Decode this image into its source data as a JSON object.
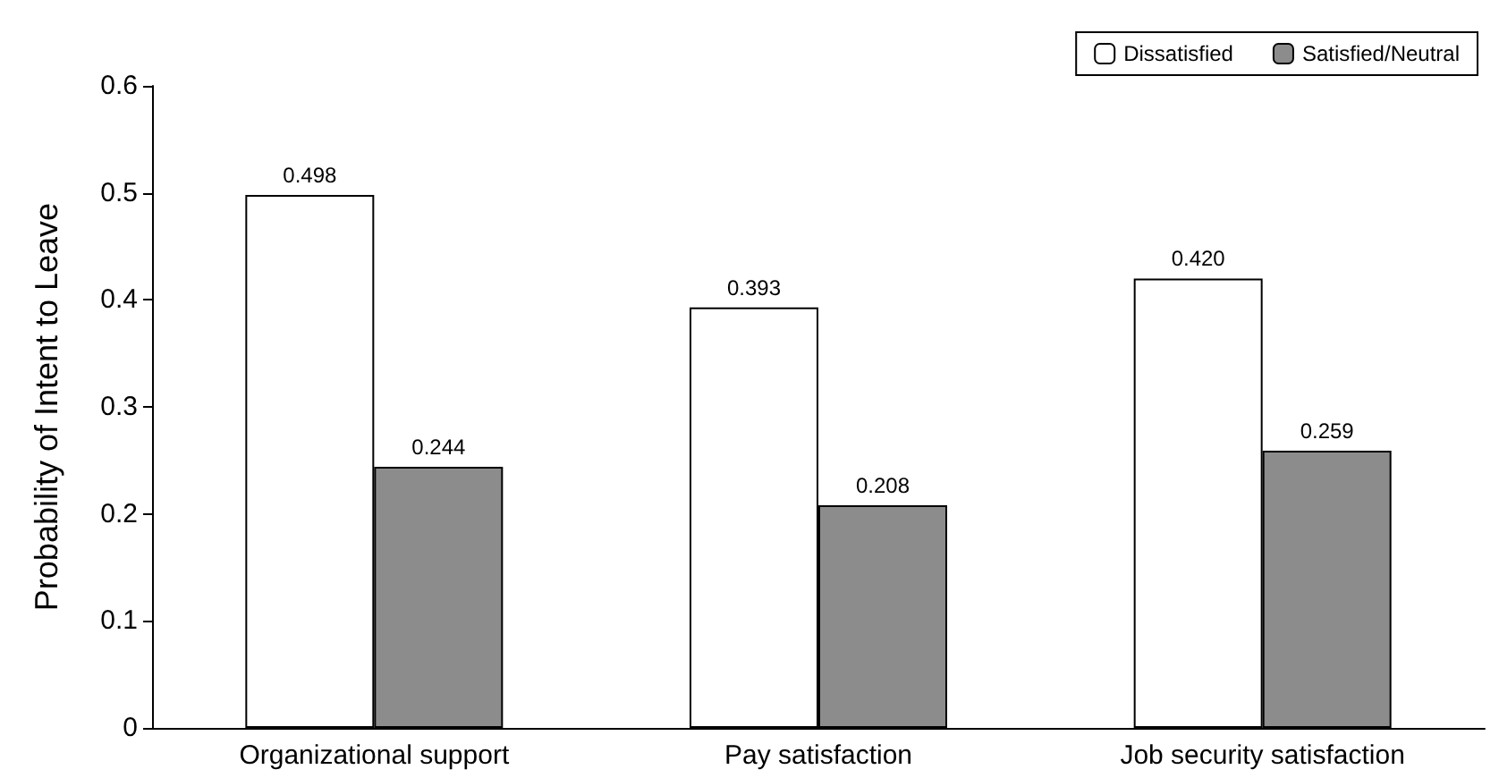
{
  "chart_data": {
    "type": "bar",
    "ylabel": "Probability of Intent to Leave",
    "categories": [
      "Organizational support",
      "Pay satisfaction",
      "Job security satisfaction"
    ],
    "series": [
      {
        "name": "Dissatisfied",
        "color": "#ffffff",
        "values": [
          0.498,
          0.393,
          0.42
        ],
        "value_labels": [
          "0.498",
          "0.393",
          "0.420"
        ]
      },
      {
        "name": "Satisfied/Neutral",
        "color": "#8c8c8c",
        "values": [
          0.244,
          0.208,
          0.259
        ],
        "value_labels": [
          "0.244",
          "0.208",
          "0.259"
        ]
      }
    ],
    "ylim": [
      0,
      0.6
    ],
    "yticks": [
      0,
      0.1,
      0.2,
      0.3,
      0.4,
      0.5,
      0.6
    ],
    "grid": false,
    "legend": "top right"
  }
}
